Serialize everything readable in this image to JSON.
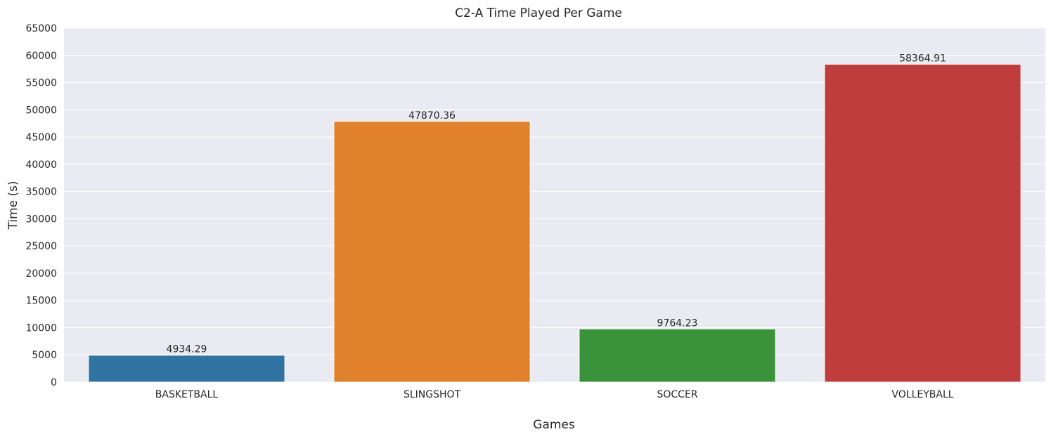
{
  "chart_data": {
    "type": "bar",
    "title": "C2-A Time Played Per Game",
    "xlabel": "Games",
    "ylabel": "Time (s)",
    "categories": [
      "BASKETBALL",
      "SLINGSHOT",
      "SOCCER",
      "VOLLEYBALL"
    ],
    "values": [
      4934.29,
      47870.36,
      9764.23,
      58364.91
    ],
    "value_labels": [
      "4934.29",
      "47870.36",
      "9764.23",
      "58364.91"
    ],
    "colors": [
      "#3274a1",
      "#e1812c",
      "#3a923a",
      "#c03d3e"
    ],
    "ylim": [
      0,
      65000
    ],
    "yticks": [
      0,
      5000,
      10000,
      15000,
      20000,
      25000,
      30000,
      35000,
      40000,
      45000,
      50000,
      55000,
      60000,
      65000
    ],
    "ytick_labels": [
      "0",
      "5000",
      "10000",
      "15000",
      "20000",
      "25000",
      "30000",
      "35000",
      "40000",
      "45000",
      "50000",
      "55000",
      "60000",
      "65000"
    ],
    "grid": true,
    "background": "#eaeaf2",
    "grid_color": "#ffffff",
    "legend": "none"
  }
}
